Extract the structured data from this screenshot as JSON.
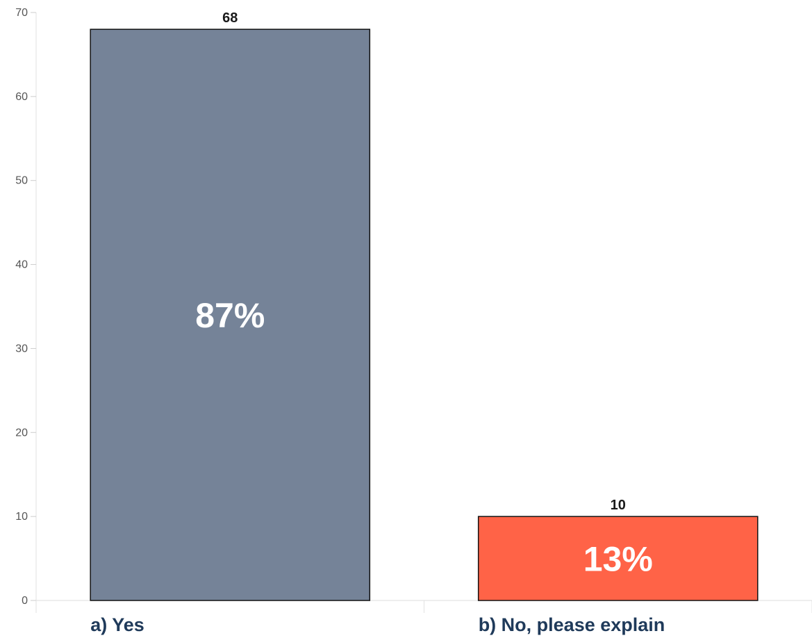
{
  "chart_data": {
    "type": "bar",
    "categories": [
      "a) Yes",
      "b) No, please explain"
    ],
    "values": [
      68,
      10
    ],
    "percent_labels": [
      "87%",
      "13%"
    ],
    "colors": [
      "#758398",
      "#ff6347"
    ],
    "ylim": [
      0,
      70
    ],
    "yticks": [
      0,
      10,
      20,
      30,
      40,
      50,
      60,
      70
    ],
    "grid": false,
    "legend": "none"
  }
}
